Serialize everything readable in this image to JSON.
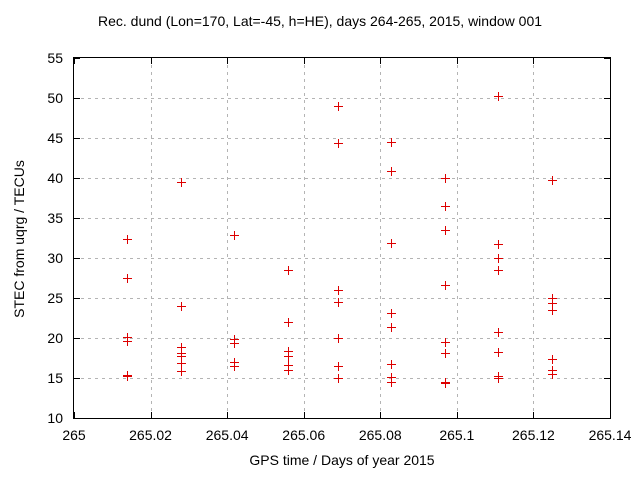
{
  "chart_data": {
    "type": "scatter",
    "title": "Rec. dund (Lon=170, Lat=-45, h=HE), days 264-265, 2015, window 001",
    "xlabel": "GPS time / Days of year 2015",
    "ylabel": "STEC from uqrg / TECUs",
    "xlim": [
      265,
      265.14
    ],
    "ylim": [
      10,
      55
    ],
    "xticks": [
      265,
      265.02,
      265.04,
      265.06,
      265.08,
      265.1,
      265.12,
      265.14
    ],
    "xtick_labels": [
      "265",
      "265.02",
      "265.04",
      "265.06",
      "265.08",
      "265.1",
      "265.12",
      "265.14"
    ],
    "yticks": [
      10,
      15,
      20,
      25,
      30,
      35,
      40,
      45,
      50,
      55
    ],
    "ytick_labels": [
      "10",
      "15",
      "20",
      "25",
      "30",
      "35",
      "40",
      "45",
      "50",
      "55"
    ],
    "grid": true,
    "legend": false,
    "marker": "plus",
    "marker_color": "#dd0000",
    "grid_color": "#b4b4b4",
    "series": [
      {
        "name": "STEC",
        "points": [
          [
            265.014,
            32.3
          ],
          [
            265.014,
            27.5
          ],
          [
            265.014,
            20.1
          ],
          [
            265.014,
            19.6
          ],
          [
            265.014,
            15.3
          ],
          [
            265.014,
            15.2
          ],
          [
            265.028,
            39.5
          ],
          [
            265.028,
            23.9
          ],
          [
            265.028,
            18.8
          ],
          [
            265.028,
            18.1
          ],
          [
            265.028,
            17.7
          ],
          [
            265.028,
            16.8
          ],
          [
            265.028,
            15.8
          ],
          [
            265.042,
            32.8
          ],
          [
            265.042,
            19.8
          ],
          [
            265.042,
            19.3
          ],
          [
            265.042,
            17.0
          ],
          [
            265.042,
            16.5
          ],
          [
            265.056,
            28.5
          ],
          [
            265.056,
            21.9
          ],
          [
            265.056,
            18.3
          ],
          [
            265.056,
            17.7
          ],
          [
            265.056,
            16.6
          ],
          [
            265.056,
            16.0
          ],
          [
            265.069,
            48.9
          ],
          [
            265.069,
            44.3
          ],
          [
            265.069,
            26.0
          ],
          [
            265.069,
            24.4
          ],
          [
            265.069,
            20.0
          ],
          [
            265.069,
            16.5
          ],
          [
            265.069,
            15.0
          ],
          [
            265.083,
            44.4
          ],
          [
            265.083,
            40.8
          ],
          [
            265.083,
            31.8
          ],
          [
            265.083,
            23.1
          ],
          [
            265.083,
            21.3
          ],
          [
            265.083,
            16.7
          ],
          [
            265.083,
            15.1
          ],
          [
            265.083,
            14.5
          ],
          [
            265.097,
            40.0
          ],
          [
            265.097,
            36.4
          ],
          [
            265.097,
            33.5
          ],
          [
            265.097,
            26.6
          ],
          [
            265.097,
            19.5
          ],
          [
            265.097,
            18.1
          ],
          [
            265.097,
            14.4
          ],
          [
            265.097,
            14.3
          ],
          [
            265.111,
            50.2
          ],
          [
            265.111,
            31.7
          ],
          [
            265.111,
            30.0
          ],
          [
            265.111,
            28.4
          ],
          [
            265.111,
            20.7
          ],
          [
            265.111,
            18.2
          ],
          [
            265.111,
            15.2
          ],
          [
            265.111,
            14.9
          ],
          [
            265.125,
            39.7
          ],
          [
            265.125,
            25.0
          ],
          [
            265.125,
            24.3
          ],
          [
            265.125,
            23.5
          ],
          [
            265.125,
            17.3
          ],
          [
            265.125,
            16.0
          ],
          [
            265.125,
            15.5
          ]
        ]
      }
    ]
  }
}
